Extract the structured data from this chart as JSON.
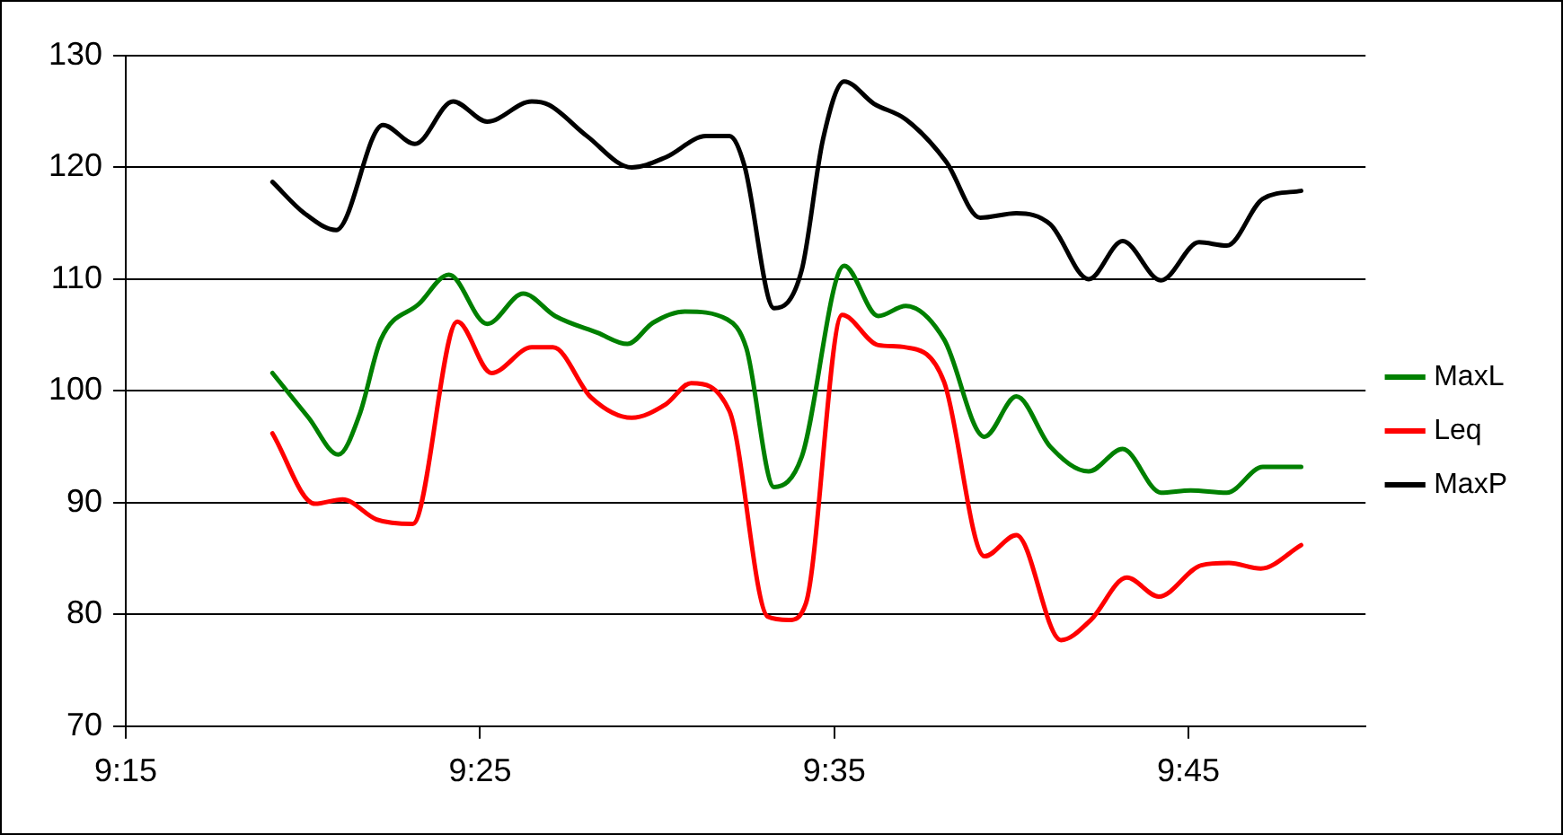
{
  "chart_data": {
    "type": "line",
    "xlim": [
      9.25,
      9.8333
    ],
    "xticks": [
      {
        "value": 9.25,
        "label": "9:15"
      },
      {
        "value": 9.4167,
        "label": "9:25"
      },
      {
        "value": 9.5833,
        "label": "9:35"
      },
      {
        "value": 9.75,
        "label": "9:45"
      }
    ],
    "ylim": [
      70,
      130
    ],
    "yticks": [
      70,
      80,
      90,
      100,
      110,
      120,
      130
    ],
    "grid": "y",
    "legend": "right",
    "marker": "none",
    "line_style": "solid",
    "series": [
      {
        "name": "MaxL",
        "color": "#008000",
        "x": [
          9.319,
          9.336,
          9.35,
          9.36,
          9.37,
          9.388,
          9.402,
          9.42,
          9.437,
          9.452,
          9.472,
          9.486,
          9.498,
          9.513,
          9.533,
          9.542,
          9.555,
          9.568,
          9.588,
          9.604,
          9.617,
          9.635,
          9.654,
          9.669,
          9.685,
          9.703,
          9.719,
          9.737,
          9.751,
          9.768,
          9.785,
          9.803
        ],
        "values": [
          101.6,
          97.6,
          94.3,
          97.9,
          104.6,
          107.8,
          110.4,
          106.0,
          108.7,
          106.7,
          105.2,
          104.2,
          106.1,
          107.1,
          106.4,
          103.8,
          91.4,
          94.1,
          111.2,
          106.7,
          107.6,
          104.6,
          95.9,
          99.5,
          95.0,
          92.8,
          94.8,
          90.9,
          91.1,
          90.9,
          93.2,
          93.2
        ]
      },
      {
        "name": "Leq",
        "color": "#ff0000",
        "x": [
          9.319,
          9.339,
          9.352,
          9.368,
          9.385,
          9.406,
          9.422,
          9.441,
          9.451,
          9.469,
          9.488,
          9.504,
          9.516,
          9.534,
          9.552,
          9.562,
          9.57,
          9.587,
          9.604,
          9.617,
          9.635,
          9.654,
          9.669,
          9.69,
          9.704,
          9.721,
          9.736,
          9.756,
          9.769,
          9.784,
          9.803
        ],
        "values": [
          96.2,
          89.9,
          90.3,
          88.5,
          88.1,
          106.2,
          101.6,
          103.9,
          103.9,
          99.4,
          97.6,
          98.8,
          100.7,
          98.2,
          79.8,
          79.5,
          81.0,
          106.8,
          104.1,
          103.9,
          100.8,
          85.2,
          87.1,
          77.7,
          79.5,
          83.3,
          81.6,
          84.4,
          84.6,
          84.1,
          86.2
        ]
      },
      {
        "name": "MaxP",
        "color": "#000000",
        "x": [
          9.319,
          9.334,
          9.349,
          9.371,
          9.386,
          9.404,
          9.42,
          9.441,
          9.449,
          9.467,
          9.488,
          9.504,
          9.523,
          9.534,
          9.541,
          9.555,
          9.568,
          9.578,
          9.588,
          9.602,
          9.617,
          9.636,
          9.652,
          9.669,
          9.685,
          9.703,
          9.719,
          9.737,
          9.755,
          9.768,
          9.785,
          9.803
        ],
        "values": [
          118.7,
          115.9,
          114.4,
          123.8,
          122.1,
          125.9,
          124.1,
          125.9,
          125.6,
          122.8,
          120.0,
          120.9,
          122.8,
          122.8,
          120.2,
          107.4,
          110.8,
          122.5,
          127.7,
          125.7,
          124.3,
          120.5,
          115.5,
          115.9,
          114.9,
          110.0,
          113.4,
          109.9,
          113.3,
          113.0,
          117.2,
          117.9
        ]
      }
    ]
  }
}
